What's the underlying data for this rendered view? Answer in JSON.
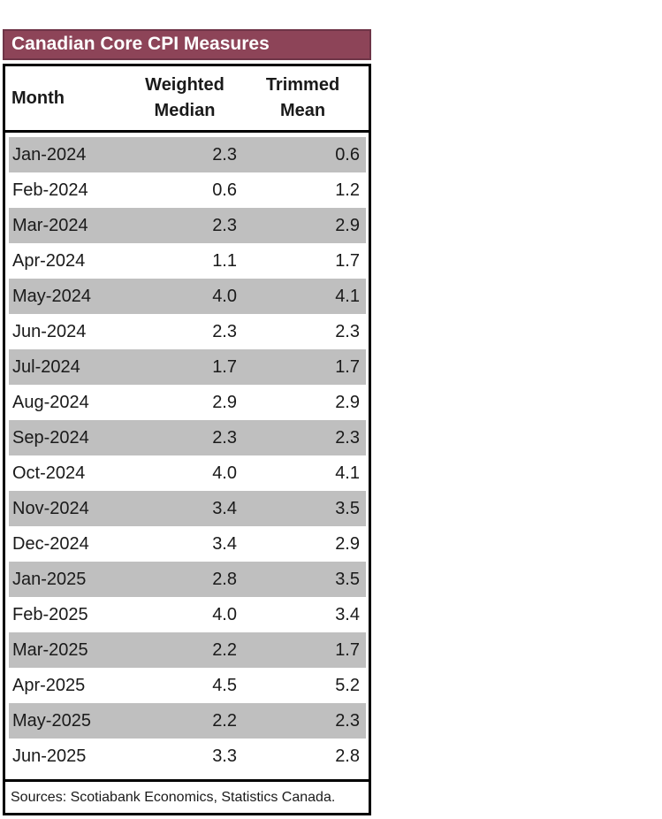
{
  "title_bar": {
    "title": "Canadian Core CPI Measures"
  },
  "header": {
    "month": "Month",
    "weighted": [
      "Weighted",
      "Median"
    ],
    "trimmed": [
      "Trimmed",
      "Mean"
    ]
  },
  "footer": {
    "sources": "Sources: Scotiabank Economics, Statistics Canada."
  },
  "colors": {
    "title_bg": "#8D4458",
    "title_border": "#6E3447",
    "title_text": "#FFFFFF",
    "row_stripe": "#BFBFBF",
    "table_border": "#000000",
    "body_text": "#1A1A1A"
  },
  "chart_data": {
    "type": "table",
    "title": "Canadian Core CPI Measures",
    "columns": [
      "Month",
      "Weighted Median",
      "Trimmed Mean"
    ],
    "rows": [
      [
        "Jan-2024",
        2.3,
        0.6
      ],
      [
        "Feb-2024",
        0.6,
        1.2
      ],
      [
        "Mar-2024",
        2.3,
        2.9
      ],
      [
        "Apr-2024",
        1.1,
        1.7
      ],
      [
        "May-2024",
        4.0,
        4.1
      ],
      [
        "Jun-2024",
        2.3,
        2.3
      ],
      [
        "Jul-2024",
        1.7,
        1.7
      ],
      [
        "Aug-2024",
        2.9,
        2.9
      ],
      [
        "Sep-2024",
        2.3,
        2.3
      ],
      [
        "Oct-2024",
        4.0,
        4.1
      ],
      [
        "Nov-2024",
        3.4,
        3.5
      ],
      [
        "Dec-2024",
        3.4,
        2.9
      ],
      [
        "Jan-2025",
        2.8,
        3.5
      ],
      [
        "Feb-2025",
        4.0,
        3.4
      ],
      [
        "Mar-2025",
        2.2,
        1.7
      ],
      [
        "Apr-2025",
        4.5,
        5.2
      ],
      [
        "May-2025",
        2.2,
        2.3
      ],
      [
        "Jun-2025",
        3.3,
        2.8
      ]
    ],
    "value_format": "one_decimal",
    "stripe_pattern": "odd-rows-gray-starting-first",
    "notes": "Sources: Scotiabank Economics, Statistics Canada."
  }
}
